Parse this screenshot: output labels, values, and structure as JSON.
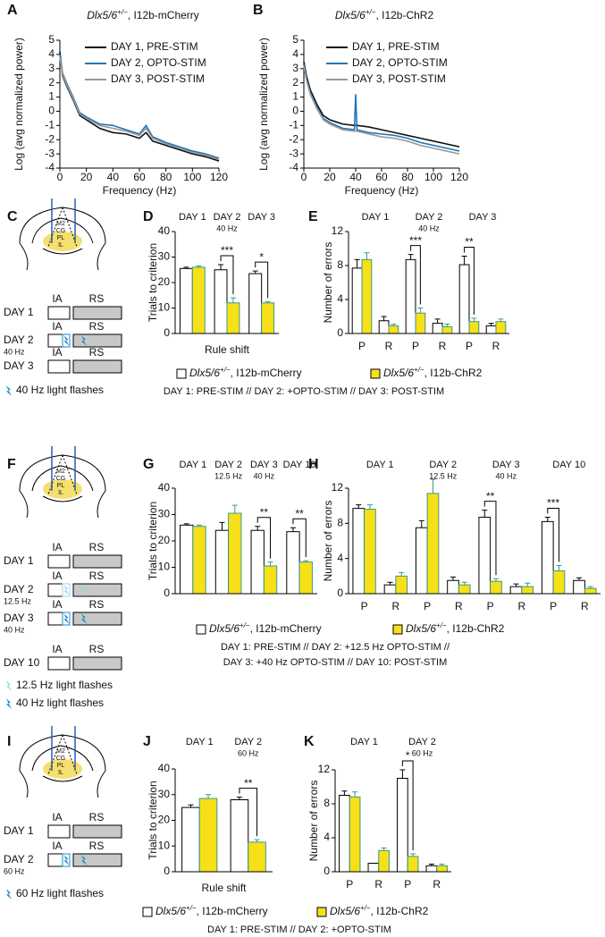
{
  "chart_data": [
    {
      "type": "line",
      "panel": "A",
      "title": {
        "italic": "Dlx5/6",
        "sup": "+/−",
        "text": ", I12b-mCherry"
      },
      "xlabel": "Frequency (Hz)",
      "ylabel": "Log (avg normalized power)",
      "xlim": [
        0,
        120
      ],
      "xticks": [
        0,
        20,
        40,
        60,
        80,
        100,
        120
      ],
      "ylim": [
        -4,
        5
      ],
      "yticks": [
        -4,
        -3,
        -2,
        -1,
        0,
        1,
        2,
        3,
        4,
        5
      ],
      "x": [
        0,
        2,
        5,
        10,
        15,
        20,
        30,
        40,
        50,
        60,
        65,
        70,
        80,
        90,
        100,
        110,
        120
      ],
      "series": [
        {
          "name": "DAY 1, PRE-STIM",
          "color": "#111111",
          "values": [
            4.2,
            2.5,
            1.8,
            0.8,
            -0.3,
            -0.6,
            -1.2,
            -1.5,
            -1.6,
            -1.9,
            -1.5,
            -2.1,
            -2.4,
            -2.7,
            -3.0,
            -3.2,
            -3.5
          ]
        },
        {
          "name": "DAY 2, OPTO-STIM",
          "color": "#1f77b4",
          "values": [
            4.0,
            2.7,
            2.0,
            1.0,
            -0.1,
            -0.4,
            -0.9,
            -1.0,
            -1.3,
            -1.6,
            -1.0,
            -1.8,
            -2.2,
            -2.5,
            -2.8,
            -3.0,
            -3.3
          ]
        },
        {
          "name": "DAY 3, POST-STIM",
          "color": "#999999",
          "values": [
            3.8,
            2.6,
            1.9,
            0.9,
            -0.2,
            -0.5,
            -1.0,
            -1.2,
            -1.4,
            -1.7,
            -1.2,
            -1.9,
            -2.3,
            -2.6,
            -2.9,
            -3.1,
            -3.4
          ]
        }
      ]
    },
    {
      "type": "line",
      "panel": "B",
      "title": {
        "italic": "Dlx5/6",
        "sup": "+/−",
        "text": ", I12b-ChR2"
      },
      "xlabel": "Frequency (Hz)",
      "ylabel": "Log (avg normalized power)",
      "xlim": [
        0,
        120
      ],
      "xticks": [
        0,
        20,
        40,
        60,
        80,
        100,
        120
      ],
      "ylim": [
        -4,
        5
      ],
      "yticks": [
        -4,
        -3,
        -2,
        -1,
        0,
        1,
        2,
        3,
        4,
        5
      ],
      "x": [
        0,
        2,
        5,
        10,
        15,
        20,
        30,
        39,
        40,
        41,
        50,
        60,
        70,
        80,
        90,
        100,
        110,
        120
      ],
      "series": [
        {
          "name": "DAY 1, PRE-STIM",
          "color": "#111111",
          "values": [
            3.5,
            2.5,
            1.5,
            0.5,
            -0.3,
            -0.6,
            -0.9,
            -1.0,
            -1.0,
            -1.0,
            -1.1,
            -1.3,
            -1.5,
            -1.7,
            -1.9,
            -2.1,
            -2.3,
            -2.5
          ]
        },
        {
          "name": "DAY 2, OPTO-STIM",
          "color": "#1f77b4",
          "values": [
            3.3,
            2.3,
            1.3,
            0.3,
            -0.5,
            -0.8,
            -1.2,
            -1.3,
            1.2,
            -1.3,
            -1.5,
            -1.6,
            -1.7,
            -1.9,
            -2.2,
            -2.4,
            -2.6,
            -2.8
          ]
        },
        {
          "name": "DAY 3, POST-STIM",
          "color": "#999999",
          "values": [
            3.2,
            2.2,
            1.2,
            0.2,
            -0.6,
            -0.9,
            -1.3,
            -1.4,
            -1.4,
            -1.4,
            -1.6,
            -1.8,
            -1.9,
            -2.1,
            -2.4,
            -2.6,
            -2.8,
            -3.0
          ]
        }
      ]
    },
    {
      "type": "bar",
      "panel": "D",
      "ylabel": "Trials to criterion",
      "xlabel": "Rule shift",
      "groups": [
        {
          "label": "DAY 1"
        },
        {
          "label": "DAY 2",
          "sublabel": "40 Hz"
        },
        {
          "label": "DAY 3"
        }
      ],
      "ylim": [
        0,
        40
      ],
      "yticks": [
        0,
        10,
        20,
        30,
        40
      ],
      "series": [
        {
          "color": "#ffffff",
          "stroke": "#000000",
          "values": [
            25.5,
            25,
            23.5
          ],
          "errors": [
            0.5,
            2,
            1
          ]
        },
        {
          "color": "#f7e017",
          "stroke": "#3a9a8a",
          "values": [
            26,
            12,
            12
          ],
          "errors": [
            0.5,
            2,
            0.5
          ]
        }
      ],
      "significance": [
        null,
        "***",
        "*"
      ]
    },
    {
      "type": "bar",
      "panel": "E",
      "ylabel": "Number of errors",
      "groups": [
        {
          "label": "DAY 1"
        },
        {
          "label": "DAY 2",
          "sublabel": "40 Hz"
        },
        {
          "label": "DAY 3"
        }
      ],
      "categories": [
        "P",
        "R",
        "P",
        "R",
        "P",
        "R"
      ],
      "ylim": [
        0,
        12
      ],
      "yticks": [
        0,
        4,
        8,
        12
      ],
      "series": [
        {
          "color": "#ffffff",
          "stroke": "#000000",
          "values": [
            7.7,
            1.5,
            8.7,
            1.2,
            8.1,
            0.9
          ],
          "errors": [
            1,
            0.5,
            0.6,
            0.5,
            1,
            0.3
          ]
        },
        {
          "color": "#f7e017",
          "stroke": "#3a9a8a",
          "values": [
            8.7,
            0.9,
            2.4,
            0.8,
            1.4,
            1.4
          ],
          "errors": [
            0.8,
            0.2,
            0.6,
            0.3,
            0.4,
            0.3
          ]
        }
      ],
      "significance": [
        null,
        null,
        "***",
        null,
        "**",
        null
      ]
    },
    {
      "type": "bar",
      "panel": "G",
      "ylabel": "Trials to criterion",
      "groups": [
        {
          "label": "DAY 1"
        },
        {
          "label": "DAY 2",
          "sublabel": "12.5 Hz"
        },
        {
          "label": "DAY 3",
          "sublabel": "40 Hz"
        },
        {
          "label": "DAY 10"
        }
      ],
      "ylim": [
        0,
        40
      ],
      "yticks": [
        0,
        10,
        20,
        30,
        40
      ],
      "series": [
        {
          "color": "#ffffff",
          "stroke": "#000000",
          "values": [
            26,
            24,
            24,
            23.5
          ],
          "errors": [
            0.5,
            3,
            1.5,
            1.5
          ]
        },
        {
          "color": "#f7e017",
          "stroke": "#3a9a8a",
          "values": [
            25.5,
            30.5,
            10.5,
            12
          ],
          "errors": [
            0.5,
            3,
            1.5,
            0.5
          ]
        }
      ],
      "significance": [
        null,
        null,
        "**",
        "**"
      ]
    },
    {
      "type": "bar",
      "panel": "H",
      "ylabel": "Number of errors",
      "groups": [
        {
          "label": "DAY 1"
        },
        {
          "label": "DAY 2",
          "sublabel": "12.5 Hz"
        },
        {
          "label": "DAY 3",
          "sublabel": "40 Hz"
        },
        {
          "label": "DAY 10"
        }
      ],
      "categories": [
        "P",
        "R",
        "P",
        "R",
        "P",
        "R",
        "P",
        "R"
      ],
      "ylim": [
        0,
        12
      ],
      "yticks": [
        0,
        4,
        8,
        12
      ],
      "series": [
        {
          "color": "#ffffff",
          "stroke": "#000000",
          "values": [
            9.7,
            1,
            7.5,
            1.5,
            8.7,
            0.8,
            8.2,
            1.5
          ],
          "errors": [
            0.4,
            0.3,
            0.8,
            0.4,
            0.8,
            0.3,
            0.5,
            0.3
          ]
        },
        {
          "color": "#f7e017",
          "stroke": "#3a9a8a",
          "values": [
            9.6,
            2,
            11.4,
            1,
            1.4,
            0.8,
            2.6,
            0.6
          ],
          "errors": [
            0.5,
            0.4,
            1.6,
            0.3,
            0.3,
            0.4,
            0.6,
            0.2
          ]
        }
      ],
      "significance": [
        null,
        null,
        null,
        null,
        "**",
        null,
        "***",
        null
      ]
    },
    {
      "type": "bar",
      "panel": "J",
      "ylabel": "Trials to criterion",
      "xlabel": "Rule shift",
      "groups": [
        {
          "label": "DAY 1"
        },
        {
          "label": "DAY 2",
          "sublabel": "60 Hz"
        }
      ],
      "ylim": [
        0,
        40
      ],
      "yticks": [
        0,
        10,
        20,
        30,
        40
      ],
      "series": [
        {
          "color": "#ffffff",
          "stroke": "#000000",
          "values": [
            25,
            28
          ],
          "errors": [
            1,
            1
          ]
        },
        {
          "color": "#f7e017",
          "stroke": "#3a9a8a",
          "values": [
            28.5,
            11.5
          ],
          "errors": [
            1.5,
            1
          ]
        }
      ],
      "significance": [
        null,
        "**"
      ]
    },
    {
      "type": "bar",
      "panel": "K",
      "ylabel": "Number of errors",
      "groups": [
        {
          "label": "DAY 1"
        },
        {
          "label": "DAY 2",
          "sublabel": "60 Hz"
        }
      ],
      "categories": [
        "P",
        "R",
        "P",
        "R"
      ],
      "ylim": [
        0,
        12
      ],
      "yticks": [
        0,
        4,
        8,
        12
      ],
      "series": [
        {
          "color": "#ffffff",
          "stroke": "#000000",
          "values": [
            9,
            1,
            11,
            0.7
          ],
          "errors": [
            0.5,
            0,
            1,
            0.2
          ]
        },
        {
          "color": "#f7e017",
          "stroke": "#3a9a8a",
          "values": [
            8.8,
            2.5,
            1.8,
            0.7
          ],
          "errors": [
            0.6,
            0.3,
            0.3,
            0.2
          ]
        }
      ],
      "significance": [
        null,
        null,
        "*",
        null
      ]
    }
  ],
  "schematics": [
    {
      "panel": "C",
      "brain_labels": [
        "M2",
        "CG",
        "PL",
        "IL"
      ],
      "rows": [
        {
          "day": "DAY 1",
          "ia": "IA",
          "rs": "RS"
        },
        {
          "day": "DAY 2",
          "freq": "40 Hz",
          "ia": "IA",
          "rs": "RS"
        },
        {
          "day": "DAY 3",
          "ia": "IA",
          "rs": "RS"
        }
      ],
      "flash_legend": [
        {
          "text": "40 Hz light flashes",
          "color": "#1a8ccc"
        }
      ]
    },
    {
      "panel": "F",
      "brain_labels": [
        "M2",
        "CG",
        "PL",
        "IL"
      ],
      "rows": [
        {
          "day": "DAY 1",
          "ia": "IA",
          "rs": "RS"
        },
        {
          "day": "DAY 2",
          "freq": "12.5 Hz",
          "ia": "IA",
          "rs": "RS"
        },
        {
          "day": "DAY 3",
          "freq": "40 Hz",
          "ia": "IA",
          "rs": "RS"
        },
        {
          "day": "DAY 10",
          "ia": "IA",
          "rs": "RS"
        }
      ],
      "flash_legend": [
        {
          "text": "12.5 Hz light flashes",
          "color": "#9fd2ee"
        },
        {
          "text": "40 Hz light flashes",
          "color": "#1a8ccc"
        }
      ]
    },
    {
      "panel": "I",
      "brain_labels": [
        "M2",
        "CG",
        "PL",
        "IL"
      ],
      "rows": [
        {
          "day": "DAY 1",
          "ia": "IA",
          "rs": "RS"
        },
        {
          "day": "DAY 2",
          "freq": "60 Hz",
          "ia": "IA",
          "rs": "RS"
        }
      ],
      "flash_legend": [
        {
          "text": "60 Hz light flashes",
          "color": "#1a8ccc"
        }
      ]
    }
  ],
  "legends": [
    {
      "entries": [
        {
          "italic": "Dlx5/6",
          "sup": "+/−",
          "text": ", I12b-mCherry",
          "color": "#ffffff"
        },
        {
          "italic": "Dlx5/6",
          "sup": "+/−",
          "text": ", I12b-ChR2",
          "color": "#f7e017"
        }
      ],
      "caption": [
        "DAY 1: PRE-STIM // DAY 2: +OPTO-STIM // DAY 3: POST-STIM"
      ]
    },
    {
      "entries": [
        {
          "italic": "Dlx5/6",
          "sup": "+/−",
          "text": ", I12b-mCherry",
          "color": "#ffffff"
        },
        {
          "italic": "Dlx5/6",
          "sup": "+/−",
          "text": ", I12b-ChR2",
          "color": "#f7e017"
        }
      ],
      "caption": [
        "DAY 1: PRE-STIM // DAY 2: +12.5 Hz OPTO-STIM //",
        "DAY 3: +40 Hz OPTO-STIM // DAY 10: POST-STIM"
      ]
    },
    {
      "entries": [
        {
          "italic": "Dlx5/6",
          "sup": "+/−",
          "text": ", I12b-mCherry",
          "color": "#ffffff"
        },
        {
          "italic": "Dlx5/6",
          "sup": "+/−",
          "text": ", I12b-ChR2",
          "color": "#f7e017"
        }
      ],
      "caption": [
        "DAY 1: PRE-STIM // DAY 2: +OPTO-STIM"
      ]
    }
  ]
}
